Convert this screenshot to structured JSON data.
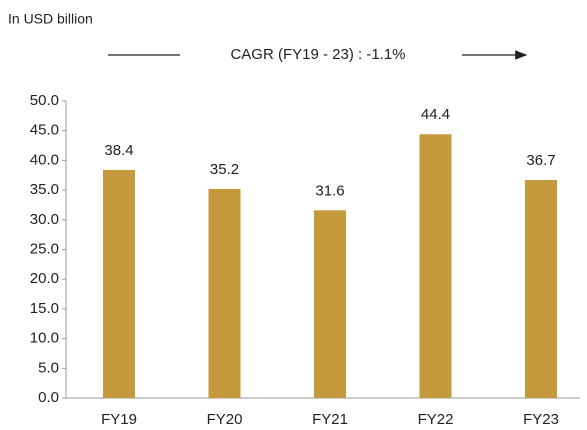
{
  "chart_data": {
    "type": "bar",
    "subtitle": "In USD billion",
    "annotation": "CAGR (FY19 - 23) : -1.1%",
    "categories": [
      "FY19",
      "FY20",
      "FY21",
      "FY22",
      "FY23"
    ],
    "values": [
      38.4,
      35.2,
      31.6,
      44.4,
      36.7
    ],
    "color": "#c49a3c",
    "ylim": [
      0,
      50
    ],
    "yticks": [
      {
        "value": 0,
        "label": "0.0"
      },
      {
        "value": 5,
        "label": "5.0"
      },
      {
        "value": 10,
        "label": "10.0"
      },
      {
        "value": 15,
        "label": "15.0"
      },
      {
        "value": 20,
        "label": "20.0"
      },
      {
        "value": 25,
        "label": "25.0"
      },
      {
        "value": 30,
        "label": "30.0"
      },
      {
        "value": 35,
        "label": "35.0"
      },
      {
        "value": 40,
        "label": "40.0"
      },
      {
        "value": 45,
        "label": "45.0"
      },
      {
        "value": 50,
        "label": "50.0"
      }
    ],
    "grid": false
  }
}
